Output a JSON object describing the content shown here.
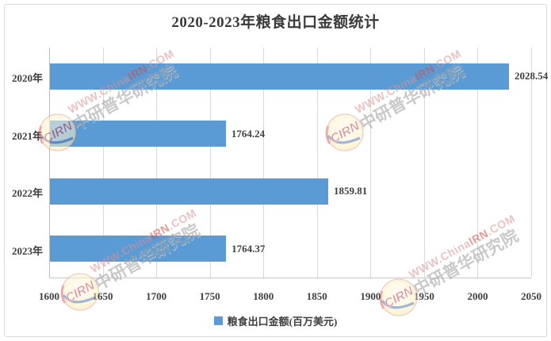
{
  "title": "2020-2023年粮食出口金额统计",
  "chart_data": {
    "type": "bar",
    "orientation": "horizontal",
    "title": "2020-2023年粮食出口金额统计",
    "categories": [
      "2020年",
      "2021年",
      "2022年",
      "2023年"
    ],
    "series": [
      {
        "name": "粮食出口金额(百万美元)",
        "values": [
          2028.54,
          1764.24,
          1859.81,
          1764.37
        ]
      }
    ],
    "value_labels": [
      "2028.54",
      "1764.24",
      "1859.81",
      "1764.37"
    ],
    "xlim": [
      1600,
      2050
    ],
    "x_ticks": [
      "1600",
      "1650",
      "1700",
      "1750",
      "1800",
      "1850",
      "1900",
      "1950",
      "2000",
      "2050"
    ],
    "grid": true,
    "legend_position": "bottom",
    "bar_color": "#5B9BD5"
  },
  "legend": {
    "label": "粮食出口金额(百万美元)"
  },
  "watermark": {
    "logo_text": "CIRN",
    "url_segments": [
      {
        "text": "WWW.China",
        "color": "#DC9191"
      },
      {
        "text": "IRN",
        "color": "#D14B3F"
      },
      {
        "text": ".COM",
        "color": "#DC9191"
      }
    ],
    "org_text": "中研普华研究院"
  },
  "colors": {
    "bar": "#5B9BD5",
    "grid": "#D9D9D9",
    "axis": "#BFBFBF",
    "text": "#3F3F3F",
    "border": "#D9D9D9",
    "logo_ring": "#D35050",
    "logo_text": "#C5373D",
    "logo_swoosh": "#3B67AE"
  }
}
